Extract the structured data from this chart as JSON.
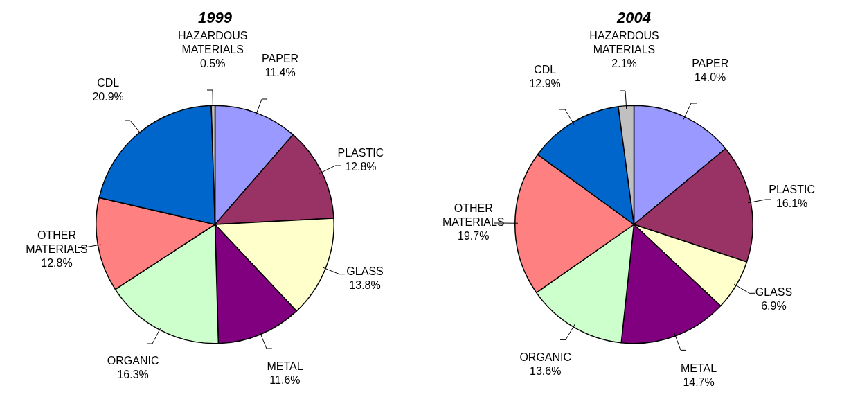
{
  "chart_data": [
    {
      "type": "pie",
      "title": "1999",
      "categories": [
        "PAPER",
        "PLASTIC",
        "GLASS",
        "METAL",
        "ORGANIC",
        "OTHER MATERIALS",
        "CDL",
        "HAZARDOUS MATERIALS"
      ],
      "values": [
        11.4,
        12.8,
        13.8,
        11.6,
        16.3,
        12.8,
        20.9,
        0.5
      ],
      "value_labels": [
        "11.4%",
        "12.8%",
        "13.8%",
        "11.6%",
        "16.3%",
        "12.8%",
        "20.9%",
        "0.5%"
      ],
      "colors": [
        "#9999ff",
        "#993366",
        "#ffffcc",
        "#800080",
        "#ccffcc",
        "#ff8080",
        "#0066cc",
        "#c0c0c0"
      ],
      "legend": false
    },
    {
      "type": "pie",
      "title": "2004",
      "categories": [
        "PAPER",
        "PLASTIC",
        "GLASS",
        "METAL",
        "ORGANIC",
        "OTHER MATERIALS",
        "CDL",
        "HAZARDOUS MATERIALS"
      ],
      "values": [
        14.0,
        16.1,
        6.9,
        14.7,
        13.6,
        19.7,
        12.9,
        2.1
      ],
      "value_labels": [
        "14.0%",
        "16.1%",
        "6.9%",
        "14.7%",
        "13.6%",
        "19.7%",
        "12.9%",
        "2.1%"
      ],
      "colors": [
        "#9999ff",
        "#993366",
        "#ffffcc",
        "#800080",
        "#ccffcc",
        "#ff8080",
        "#0066cc",
        "#c0c0c0"
      ],
      "legend": false
    }
  ]
}
